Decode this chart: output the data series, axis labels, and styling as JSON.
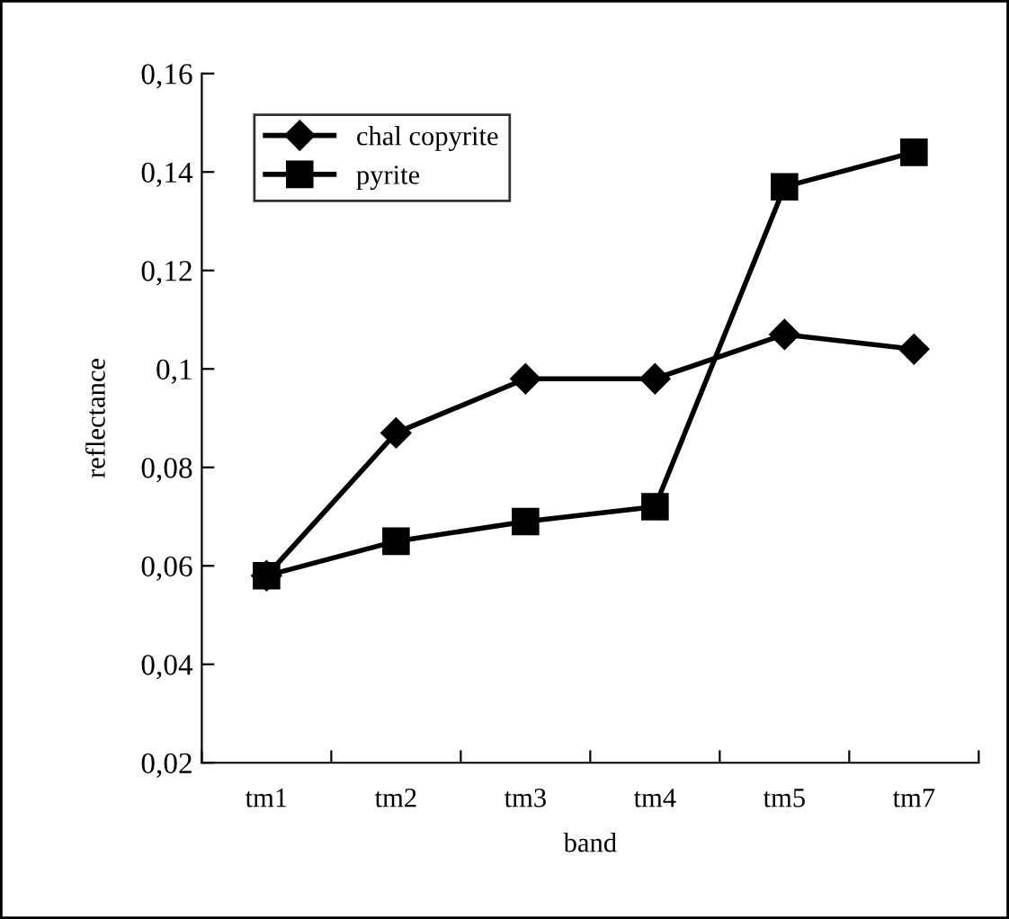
{
  "chart_data": {
    "type": "line",
    "xlabel": "band",
    "ylabel": "reflectance",
    "categories": [
      "tm1",
      "tm2",
      "tm3",
      "tm4",
      "tm5",
      "tm7"
    ],
    "series": [
      {
        "name": "chal copyrite",
        "color": "#000000",
        "marker": "diamond",
        "values": [
          0.058,
          0.087,
          0.098,
          0.098,
          0.107,
          0.104
        ]
      },
      {
        "name": "pyrite",
        "color": "#000000",
        "marker": "square",
        "values": [
          0.058,
          0.065,
          0.069,
          0.072,
          0.137,
          0.144
        ]
      }
    ],
    "ylim": [
      0.02,
      0.16
    ],
    "yticks": [
      {
        "value": 0.02,
        "label": "0,02"
      },
      {
        "value": 0.04,
        "label": "0,04"
      },
      {
        "value": 0.06,
        "label": "0,06"
      },
      {
        "value": 0.08,
        "label": "0,08"
      },
      {
        "value": 0.1,
        "label": "0,1"
      },
      {
        "value": 0.12,
        "label": "0,12"
      },
      {
        "value": 0.14,
        "label": "0,14"
      },
      {
        "value": 0.16,
        "label": "0,16"
      }
    ],
    "grid": false,
    "legend": "top left",
    "line_style": "solid"
  }
}
